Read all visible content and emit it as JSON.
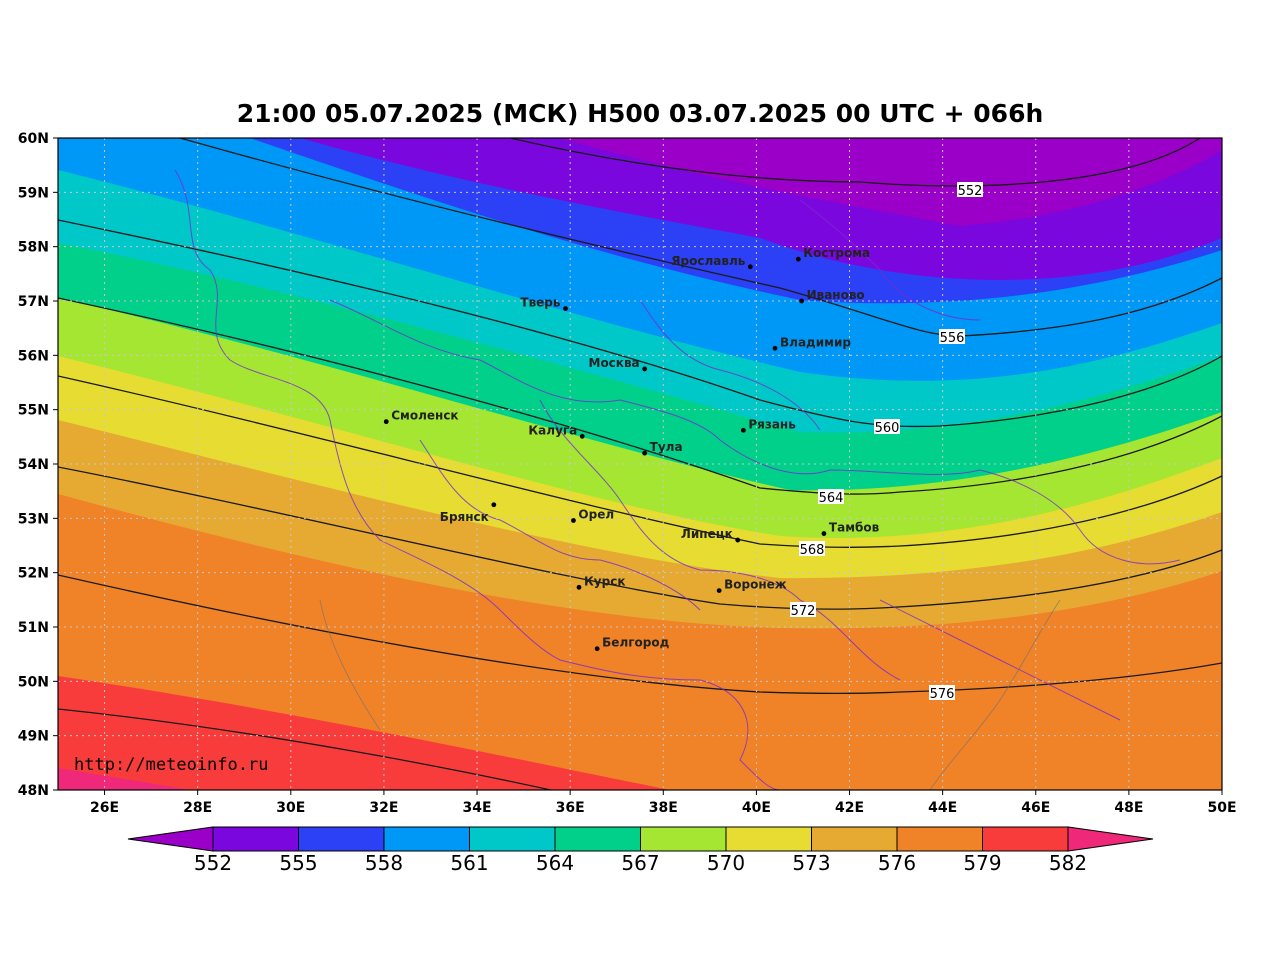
{
  "title": "21:00 05.07.2025 (МСК) H500  03.07.2025 00 UTC + 066h",
  "credit": "http://meteoinfo.ru",
  "map": {
    "lon_range": [
      25,
      50
    ],
    "lat_range": [
      48,
      60
    ],
    "lat_ticks": [
      "60N",
      "59N",
      "58N",
      "57N",
      "56N",
      "55N",
      "54N",
      "53N",
      "52N",
      "51N",
      "50N",
      "49N",
      "48N"
    ],
    "lon_ticks": [
      "26E",
      "28E",
      "30E",
      "32E",
      "34E",
      "36E",
      "38E",
      "40E",
      "42E",
      "44E",
      "46E",
      "48E",
      "50E"
    ],
    "grid": true
  },
  "colorbar": {
    "labels": [
      "552",
      "555",
      "558",
      "561",
      "564",
      "567",
      "570",
      "573",
      "576",
      "579",
      "582"
    ],
    "colors": [
      "#9a00c8",
      "#7a08de",
      "#2c40f6",
      "#0098f6",
      "#00c8c8",
      "#00d08a",
      "#a4e632",
      "#e6dc32",
      "#e6aa32",
      "#f08228",
      "#f83c3c",
      "#f0287a"
    ]
  },
  "contour_labels": [
    "552",
    "556",
    "560",
    "564",
    "568",
    "572",
    "576"
  ],
  "cities": [
    {
      "name": "Кострома",
      "lon": 40.9,
      "lat": 57.77
    },
    {
      "name": "Ярославль",
      "lon": 39.87,
      "lat": 57.63
    },
    {
      "name": "Иваново",
      "lon": 40.97,
      "lat": 57.0
    },
    {
      "name": "Тверь",
      "lon": 35.9,
      "lat": 56.86
    },
    {
      "name": "Владимир",
      "lon": 40.4,
      "lat": 56.13
    },
    {
      "name": "Москва",
      "lon": 37.6,
      "lat": 55.75
    },
    {
      "name": "Смоленск",
      "lon": 32.05,
      "lat": 54.78
    },
    {
      "name": "Рязань",
      "lon": 39.72,
      "lat": 54.62
    },
    {
      "name": "Калуга",
      "lon": 36.26,
      "lat": 54.51
    },
    {
      "name": "Тула",
      "lon": 37.6,
      "lat": 54.2
    },
    {
      "name": "Брянск",
      "lon": 34.36,
      "lat": 53.25
    },
    {
      "name": "Орел",
      "lon": 36.07,
      "lat": 52.96
    },
    {
      "name": "Липецк",
      "lon": 39.6,
      "lat": 52.6
    },
    {
      "name": "Тамбов",
      "lon": 41.45,
      "lat": 52.72
    },
    {
      "name": "Курск",
      "lon": 36.19,
      "lat": 51.73
    },
    {
      "name": "Воронеж",
      "lon": 39.2,
      "lat": 51.67
    },
    {
      "name": "Белгород",
      "lon": 36.58,
      "lat": 50.6
    }
  ]
}
